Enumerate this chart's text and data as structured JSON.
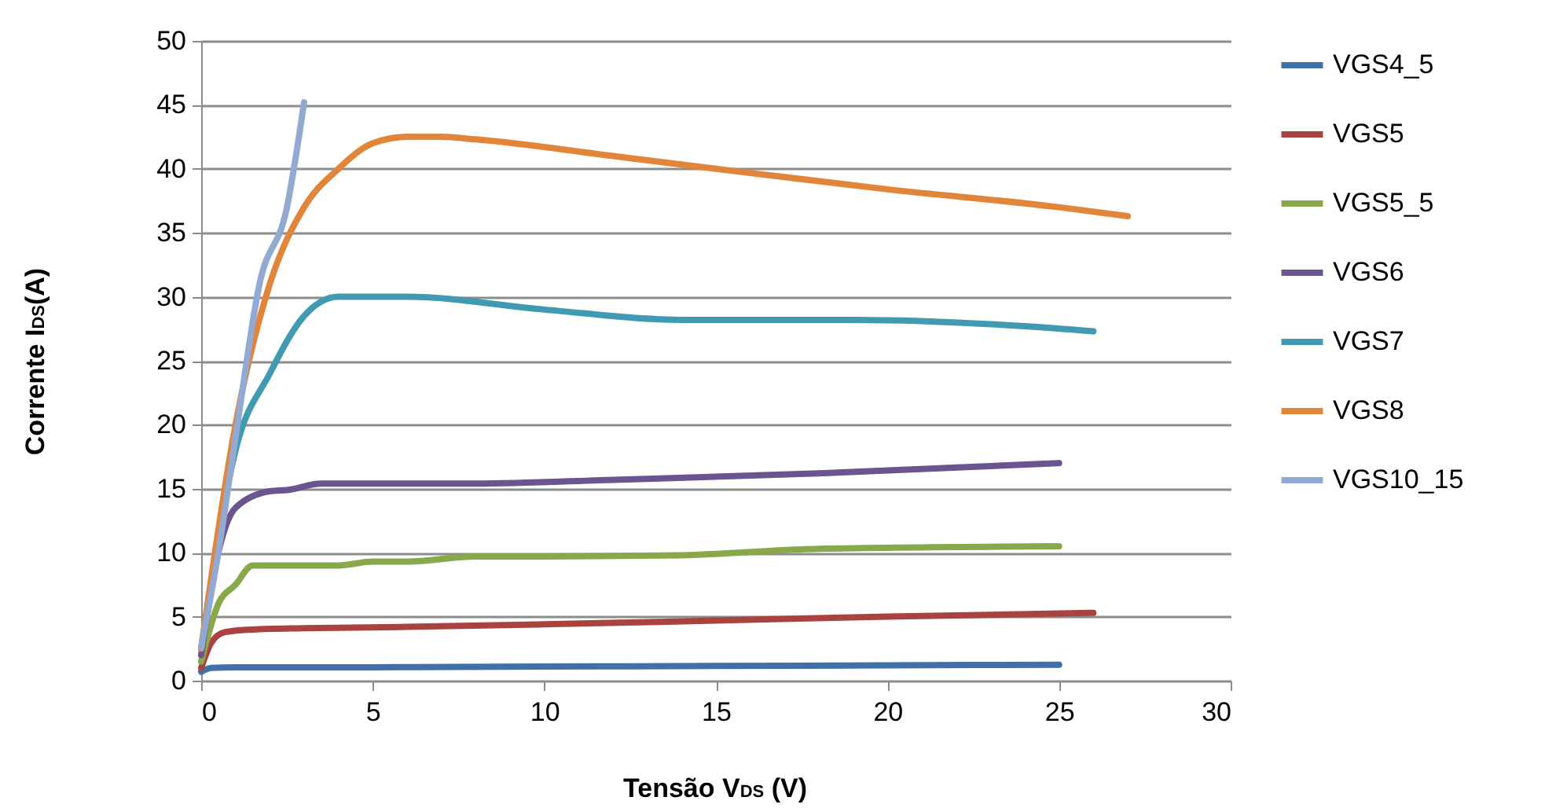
{
  "chart_data": {
    "type": "line",
    "xlabel": "Tensão V$_{DS}$ (V)",
    "ylabel": "Corrente I$_{DS}$(A)",
    "xlim": [
      0,
      30
    ],
    "xticks": [
      0,
      5,
      10,
      15,
      20,
      25,
      30
    ],
    "ylim": [
      0,
      50
    ],
    "yticks": [
      0,
      5,
      10,
      15,
      20,
      25,
      30,
      35,
      40,
      45,
      50
    ],
    "grid": "y",
    "legend": "right",
    "line_style": "solid",
    "marker": "none",
    "series": [
      {
        "name": "VGS4_5",
        "color": "#4170a8",
        "x": [
          0,
          0.3,
          1,
          5,
          10,
          15,
          20,
          25
        ],
        "values": [
          0.7,
          1,
          1.05,
          1.05,
          1.1,
          1.15,
          1.2,
          1.25
        ]
      },
      {
        "name": "VGS5",
        "color": "#aa4240",
        "x": [
          0,
          0.3,
          0.7,
          1.5,
          3,
          6,
          10,
          15,
          20,
          26
        ],
        "values": [
          1,
          3,
          3.8,
          4,
          4.1,
          4.2,
          4.4,
          4.7,
          5,
          5.3
        ]
      },
      {
        "name": "VGS5_5",
        "color": "#88a84a",
        "x": [
          0,
          0.5,
          1,
          1.5,
          3,
          4,
          5,
          6,
          8,
          10,
          14,
          18,
          25
        ],
        "values": [
          1.5,
          6,
          7.5,
          9,
          9,
          9,
          9.3,
          9.3,
          9.7,
          9.7,
          9.8,
          10.3,
          10.5
        ]
      },
      {
        "name": "VGS6",
        "color": "#6b5490",
        "x": [
          0,
          0.5,
          1,
          2,
          2.5,
          3.5,
          8,
          12,
          18,
          25
        ],
        "values": [
          2,
          10,
          13.5,
          14.8,
          14.9,
          15.4,
          15.4,
          15.7,
          16.2,
          17
        ]
      },
      {
        "name": "VGS7",
        "color": "#3f9ab2",
        "x": [
          0,
          1,
          2,
          3,
          4,
          5,
          6,
          10,
          14,
          19,
          24,
          26
        ],
        "values": [
          2.5,
          18,
          24,
          28.5,
          30,
          30,
          30,
          29,
          28.2,
          28.2,
          27.7,
          27.3
        ]
      },
      {
        "name": "VGS8",
        "color": "#e0853a",
        "x": [
          0,
          1,
          2,
          3,
          4,
          5,
          6,
          7,
          8,
          12,
          15,
          20,
          25,
          27
        ],
        "values": [
          2.5,
          20,
          31,
          37,
          40,
          42,
          42.5,
          42.5,
          42.3,
          41,
          40,
          38.4,
          37,
          36.3
        ]
      },
      {
        "name": "VGS10_15",
        "color": "#92a9d2",
        "x": [
          0,
          0.5,
          1,
          1.7,
          2.5,
          3
        ],
        "values": [
          2.6,
          10,
          19,
          31,
          37,
          45.2
        ]
      }
    ]
  }
}
